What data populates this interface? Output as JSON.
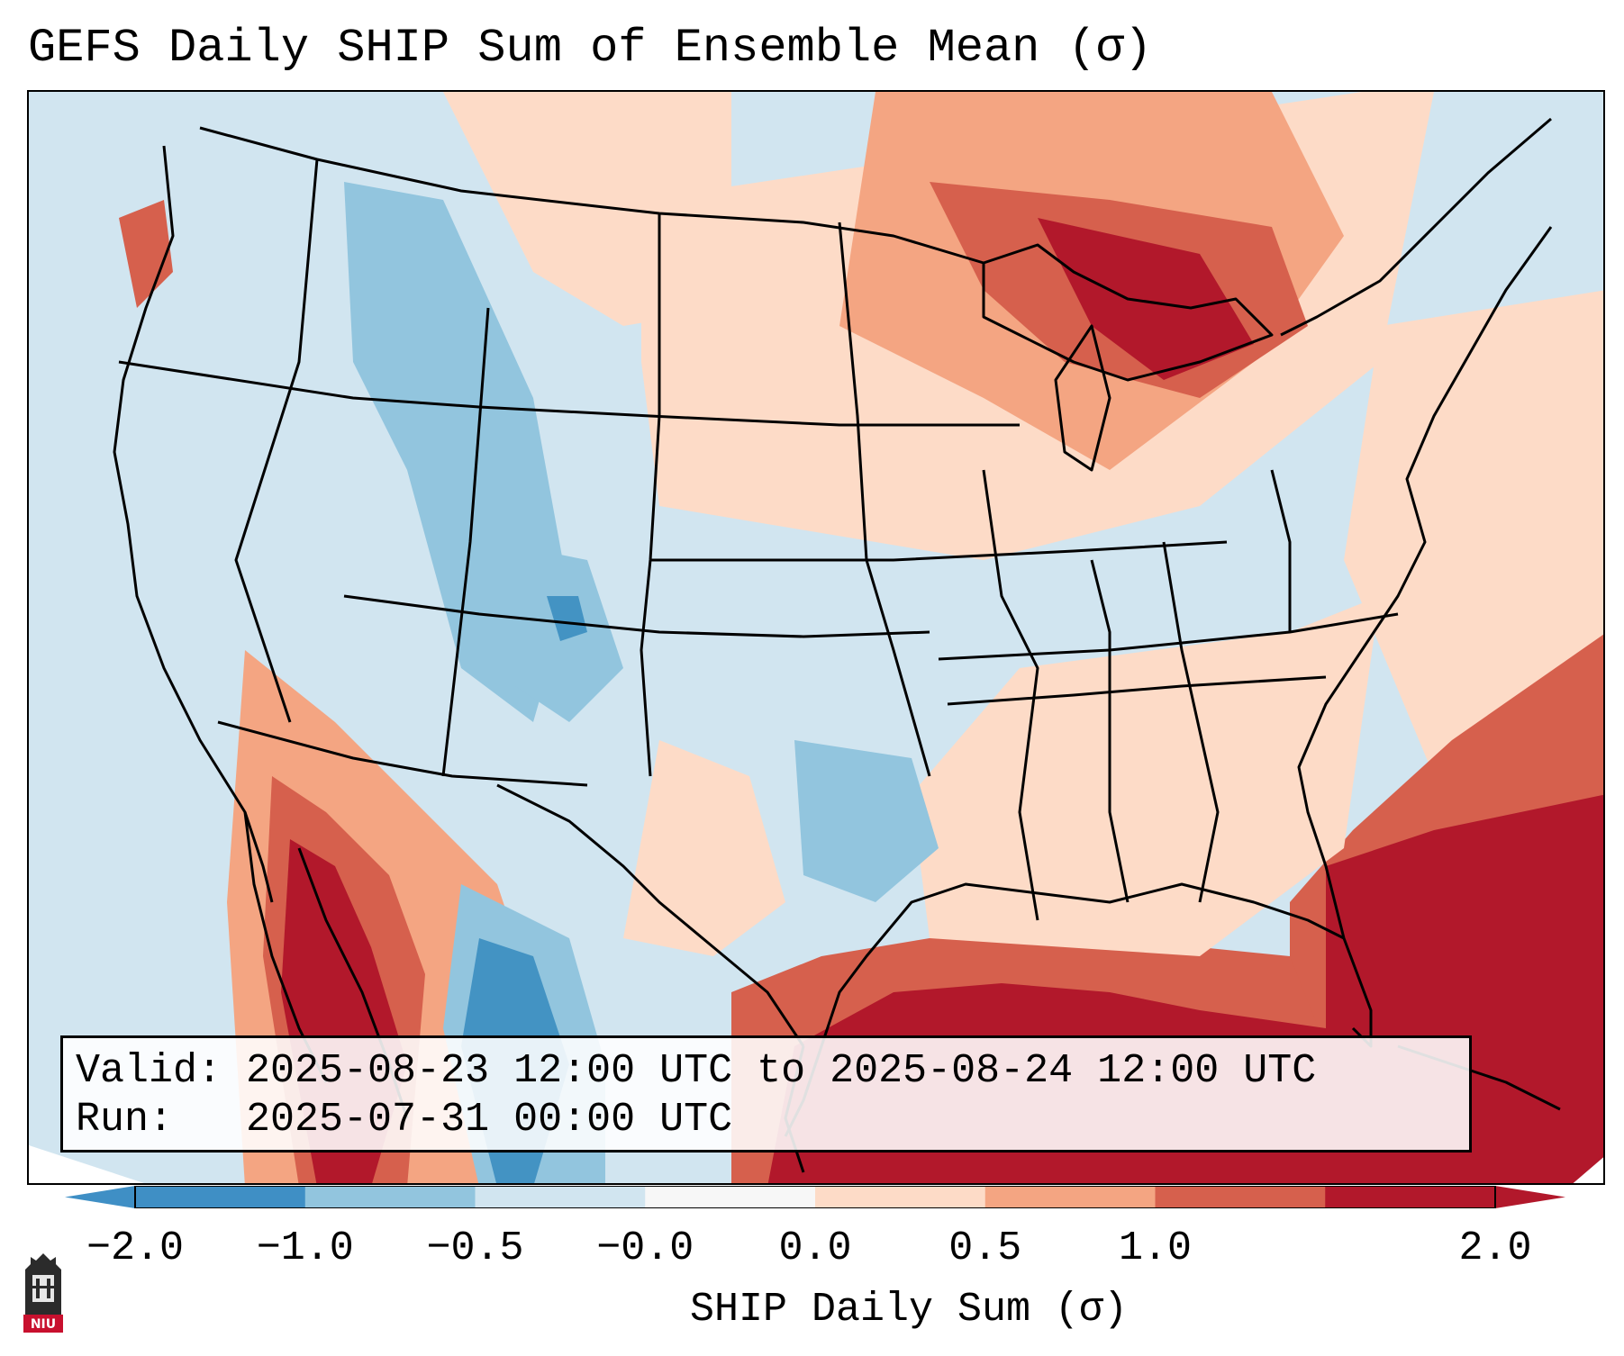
{
  "title": "GEFS Daily SHIP Sum of Ensemble Mean (σ)",
  "info": {
    "valid_line": "Valid: 2025-08-23 12:00 UTC to 2025-08-24 12:00 UTC",
    "run_line": "Run:   2025-07-31 00:00 UTC"
  },
  "colorbar": {
    "label": "SHIP Daily Sum (σ)",
    "ticks": [
      "−2.0",
      "−1.0",
      "−0.5",
      "−0.0",
      "0.0",
      "0.5",
      "1.0",
      "2.0"
    ],
    "colors": [
      "#3f8fc5",
      "#92c5de",
      "#d1e5f0",
      "#f7f7f7",
      "#fddbc7",
      "#f4a582",
      "#d6604d",
      "#b2182b"
    ]
  },
  "logo": {
    "text": "NIU"
  },
  "map": {
    "background_color": "#d1e5f0",
    "region": "Continental United States",
    "field": "SHIP daily sum anomaly, ensemble mean"
  }
}
